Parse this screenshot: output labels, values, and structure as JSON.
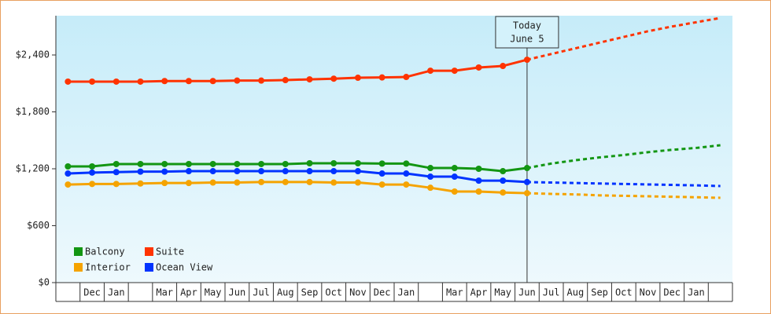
{
  "chart_data": {
    "type": "line",
    "categories": [
      null,
      "Dec",
      "Jan",
      null,
      "Mar",
      "Apr",
      "May",
      "Jun",
      "Jul",
      "Aug",
      "Sep",
      "Oct",
      "Nov",
      "Dec",
      "Jan",
      null,
      "Mar",
      "Apr",
      "May",
      "Jun",
      "Jul",
      "Aug",
      "Sep",
      "Oct",
      "Nov",
      "Dec",
      "Jan",
      null
    ],
    "ylim": [
      0,
      2814
    ],
    "yticks": [
      {
        "value": 0,
        "label": "$0"
      },
      {
        "value": 600,
        "label": "$600"
      },
      {
        "value": 1200,
        "label": "$1,200"
      },
      {
        "value": 1800,
        "label": "$1,800"
      },
      {
        "value": 2400,
        "label": "$2,400"
      }
    ],
    "annotation": [
      "Today",
      "June 5"
    ],
    "series": [
      {
        "name": "Balcony",
        "color": "#139613",
        "values": [
          1225,
          1225,
          1250,
          1250,
          1250,
          1250,
          1250,
          1250,
          1250,
          1250,
          1258,
          1258,
          1258,
          1255,
          1255,
          1208,
          1208,
          1200,
          1175,
          1208,
          null,
          null,
          null,
          null,
          null,
          null,
          null,
          null
        ],
        "forecast": [
          null,
          null,
          null,
          null,
          null,
          null,
          null,
          null,
          null,
          null,
          null,
          null,
          null,
          null,
          null,
          null,
          null,
          null,
          null,
          1208,
          1255,
          1290,
          1320,
          1345,
          1375,
          1400,
          1420,
          1448
        ]
      },
      {
        "name": "Suite",
        "color": "#ff3300",
        "values": [
          2119,
          2119,
          2119,
          2119,
          2125,
          2125,
          2125,
          2130,
          2130,
          2135,
          2143,
          2150,
          2160,
          2163,
          2168,
          2234,
          2234,
          2268,
          2284,
          2350,
          null,
          null,
          null,
          null,
          null,
          null,
          null,
          null
        ],
        "forecast": [
          null,
          null,
          null,
          null,
          null,
          null,
          null,
          null,
          null,
          null,
          null,
          null,
          null,
          null,
          null,
          null,
          null,
          null,
          null,
          2350,
          2410,
          2470,
          2530,
          2590,
          2650,
          2700,
          2745,
          2790
        ]
      },
      {
        "name": "Interior",
        "color": "#f5a300",
        "values": [
          1034,
          1040,
          1040,
          1045,
          1050,
          1050,
          1055,
          1055,
          1060,
          1060,
          1060,
          1055,
          1055,
          1034,
          1034,
          1000,
          960,
          960,
          950,
          943,
          null,
          null,
          null,
          null,
          null,
          null,
          null,
          null
        ],
        "forecast": [
          null,
          null,
          null,
          null,
          null,
          null,
          null,
          null,
          null,
          null,
          null,
          null,
          null,
          null,
          null,
          null,
          null,
          null,
          null,
          943,
          935,
          930,
          920,
          915,
          910,
          905,
          900,
          894
        ]
      },
      {
        "name": "Ocean View",
        "color": "#0033ff",
        "values": [
          1150,
          1160,
          1165,
          1170,
          1170,
          1175,
          1175,
          1175,
          1175,
          1175,
          1175,
          1175,
          1175,
          1150,
          1150,
          1117,
          1117,
          1075,
          1075,
          1060,
          null,
          null,
          null,
          null,
          null,
          null,
          null,
          null
        ],
        "forecast": [
          null,
          null,
          null,
          null,
          null,
          null,
          null,
          null,
          null,
          null,
          null,
          null,
          null,
          null,
          null,
          null,
          null,
          null,
          null,
          1060,
          1055,
          1050,
          1045,
          1040,
          1035,
          1030,
          1025,
          1018
        ]
      }
    ]
  }
}
